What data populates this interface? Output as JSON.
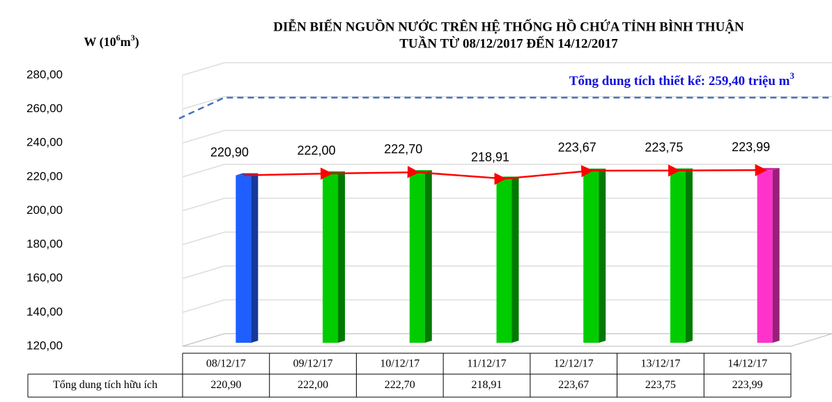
{
  "chart_data": {
    "type": "bar",
    "title": [
      "DIỄN BIẾN NGUỒN NƯỚC TRÊN HỆ THỐNG HỒ CHỨA TỈNH BÌNH THUẬN",
      "TUẦN TỪ 08/12/2017 ĐẾN 14/12/2017"
    ],
    "ylabel": [
      "W (10",
      "6",
      "m",
      "3",
      ")"
    ],
    "categories": [
      "08/12/17",
      "09/12/17",
      "10/12/17",
      "11/12/17",
      "12/12/17",
      "13/12/17",
      "14/12/17"
    ],
    "values": [
      220.9,
      222.0,
      222.7,
      218.91,
      223.67,
      223.75,
      223.99
    ],
    "value_labels": [
      "220,90",
      "222,00",
      "222,70",
      "218,91",
      "223,67",
      "223,75",
      "223,99"
    ],
    "colors": [
      "#1f5fff",
      "#00cc00",
      "#00cc00",
      "#00cc00",
      "#00cc00",
      "#00cc00",
      "#ff33cc"
    ],
    "line_color": "#ff0000",
    "ylim": [
      120,
      280
    ],
    "yticks": [
      {
        "value": 120,
        "label": "120,00"
      },
      {
        "value": 140,
        "label": "140,00"
      },
      {
        "value": 160,
        "label": "160,00"
      },
      {
        "value": 180,
        "label": "180,00"
      },
      {
        "value": 200,
        "label": "200,00"
      },
      {
        "value": 220,
        "label": "220,00"
      },
      {
        "value": 240,
        "label": "240,00"
      },
      {
        "value": 260,
        "label": "260,00"
      },
      {
        "value": 280,
        "label": "280,00"
      }
    ],
    "grid": true,
    "reference": {
      "value": 259.4,
      "label": [
        "Tổng dung tích thiết kế: 259,40 triệu m",
        "3"
      ],
      "color": "#4472c4"
    },
    "table_row_label": "Tổng dung tích hữu ích"
  }
}
